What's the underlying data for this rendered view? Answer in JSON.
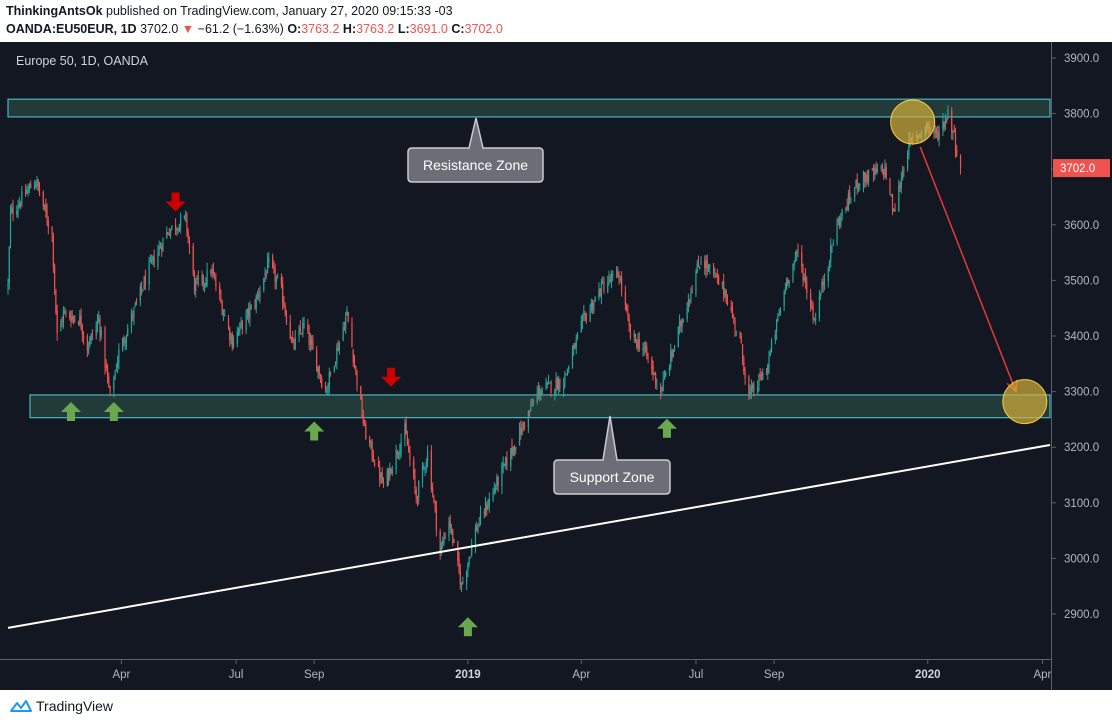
{
  "header": {
    "author": "ThinkingAntsOk",
    "published_text": "published on TradingView.com, January 27, 2020 09:15:33 -03",
    "symbol_line": "OANDA:EU50EUR, 1D",
    "last": "3702.0",
    "change": "−61.2 (−1.63%)",
    "o_label": "O:",
    "o_val": "3763.2",
    "h_label": "H:",
    "h_val": "3763.2",
    "l_label": "L:",
    "l_val": "3691.0",
    "c_label": "C:",
    "c_val": "3702.0"
  },
  "footer": {
    "brand": "TradingView"
  },
  "colors": {
    "background": "#131722",
    "up": "#26a69a",
    "down": "#ef5350",
    "zone_fill": "#2f5a4a",
    "zone_border": "#4dd0e1",
    "arrow_up": "#6aa84f",
    "arrow_down": "#cc0000",
    "circle": "#d4b03c"
  },
  "chart_data": {
    "type": "candlestick",
    "title": "Europe 50, 1D, OANDA",
    "price_axis": {
      "ticks": [
        2900,
        3000,
        3100,
        3200,
        3300,
        3400,
        3500,
        3600,
        3700,
        3800,
        3900
      ],
      "labels": [
        "2900.0",
        "3000.0",
        "3100.0",
        "3200.0",
        "3300.0",
        "3400.0",
        "3500.0",
        "3600.0",
        "3700.0",
        "3800.0",
        "3900.0"
      ],
      "range": [
        2790,
        3940
      ]
    },
    "time_axis": {
      "range": [
        "2018-01-01",
        "2020-04-07"
      ],
      "ticks": [
        {
          "date": "2018-04-01",
          "label": "Apr",
          "bold": false
        },
        {
          "date": "2018-07-01",
          "label": "Jul",
          "bold": false
        },
        {
          "date": "2018-09-01",
          "label": "Sep",
          "bold": false
        },
        {
          "date": "2019-01-01",
          "label": "2019",
          "bold": true
        },
        {
          "date": "2019-04-01",
          "label": "Apr",
          "bold": false
        },
        {
          "date": "2019-07-01",
          "label": "Jul",
          "bold": false
        },
        {
          "date": "2019-09-01",
          "label": "Sep",
          "bold": false
        },
        {
          "date": "2020-01-01",
          "label": "2020",
          "bold": true
        },
        {
          "date": "2020-04-01",
          "label": "Apr",
          "bold": false
        }
      ]
    },
    "last_price_label": "3702.0",
    "last_price": 3702.0,
    "price_path": [
      {
        "date": "2018-01-01",
        "price": 3490
      },
      {
        "date": "2018-01-03",
        "price": 3620
      },
      {
        "date": "2018-01-23",
        "price": 3680
      },
      {
        "date": "2018-02-05",
        "price": 3580
      },
      {
        "date": "2018-02-09",
        "price": 3400
      },
      {
        "date": "2018-02-14",
        "price": 3440
      },
      {
        "date": "2018-02-27",
        "price": 3430
      },
      {
        "date": "2018-03-05",
        "price": 3380
      },
      {
        "date": "2018-03-14",
        "price": 3430
      },
      {
        "date": "2018-03-23",
        "price": 3290
      },
      {
        "date": "2018-03-30",
        "price": 3370
      },
      {
        "date": "2018-04-23",
        "price": 3520
      },
      {
        "date": "2018-05-08",
        "price": 3590
      },
      {
        "date": "2018-05-22",
        "price": 3610
      },
      {
        "date": "2018-05-29",
        "price": 3490
      },
      {
        "date": "2018-06-06",
        "price": 3500
      },
      {
        "date": "2018-06-11",
        "price": 3520
      },
      {
        "date": "2018-06-28",
        "price": 3390
      },
      {
        "date": "2018-07-16",
        "price": 3460
      },
      {
        "date": "2018-07-27",
        "price": 3530
      },
      {
        "date": "2018-08-06",
        "price": 3480
      },
      {
        "date": "2018-08-15",
        "price": 3380
      },
      {
        "date": "2018-08-24",
        "price": 3420
      },
      {
        "date": "2018-09-10",
        "price": 3300
      },
      {
        "date": "2018-09-27",
        "price": 3440
      },
      {
        "date": "2018-10-11",
        "price": 3230
      },
      {
        "date": "2018-10-26",
        "price": 3130
      },
      {
        "date": "2018-11-12",
        "price": 3230
      },
      {
        "date": "2018-11-21",
        "price": 3110
      },
      {
        "date": "2018-11-30",
        "price": 3190
      },
      {
        "date": "2018-12-10",
        "price": 3010
      },
      {
        "date": "2018-12-17",
        "price": 3070
      },
      {
        "date": "2018-12-27",
        "price": 2950
      },
      {
        "date": "2019-01-07",
        "price": 3050
      },
      {
        "date": "2019-01-29",
        "price": 3160
      },
      {
        "date": "2019-02-26",
        "price": 3300
      },
      {
        "date": "2019-03-18",
        "price": 3320
      },
      {
        "date": "2019-04-03",
        "price": 3430
      },
      {
        "date": "2019-04-18",
        "price": 3490
      },
      {
        "date": "2019-05-01",
        "price": 3510
      },
      {
        "date": "2019-05-10",
        "price": 3400
      },
      {
        "date": "2019-05-20",
        "price": 3380
      },
      {
        "date": "2019-06-03",
        "price": 3300
      },
      {
        "date": "2019-06-24",
        "price": 3460
      },
      {
        "date": "2019-07-05",
        "price": 3540
      },
      {
        "date": "2019-07-24",
        "price": 3480
      },
      {
        "date": "2019-08-05",
        "price": 3390
      },
      {
        "date": "2019-08-12",
        "price": 3290
      },
      {
        "date": "2019-08-26",
        "price": 3340
      },
      {
        "date": "2019-09-11",
        "price": 3500
      },
      {
        "date": "2019-09-20",
        "price": 3550
      },
      {
        "date": "2019-10-03",
        "price": 3430
      },
      {
        "date": "2019-10-21",
        "price": 3600
      },
      {
        "date": "2019-11-07",
        "price": 3680
      },
      {
        "date": "2019-11-28",
        "price": 3700
      },
      {
        "date": "2019-12-05",
        "price": 3620
      },
      {
        "date": "2019-12-16",
        "price": 3740
      },
      {
        "date": "2019-12-31",
        "price": 3780
      },
      {
        "date": "2020-01-08",
        "price": 3760
      },
      {
        "date": "2020-01-17",
        "price": 3800
      },
      {
        "date": "2020-01-21",
        "price": 3770
      },
      {
        "date": "2020-01-27",
        "price": 3702
      }
    ],
    "zones": [
      {
        "name": "resistance",
        "label": "Resistance Zone",
        "from": 3794,
        "to": 3826
      },
      {
        "name": "support",
        "label": "Support Zone",
        "from": 3253,
        "to": 3294
      }
    ],
    "trendline": {
      "start": {
        "date": "2018-01-01",
        "price": 2875
      },
      "end": {
        "date": "2020-04-07",
        "price": 3204
      }
    },
    "projection": {
      "from": {
        "date": "2019-12-26",
        "price": 3740
      },
      "to": {
        "date": "2020-03-11",
        "price": 3300
      }
    },
    "circles": [
      {
        "date": "2019-12-20",
        "price": 3785
      },
      {
        "date": "2020-03-18",
        "price": 3282
      }
    ],
    "arrows_up": [
      {
        "date": "2018-02-20",
        "price": 3265
      },
      {
        "date": "2018-03-26",
        "price": 3265
      },
      {
        "date": "2018-09-01",
        "price": 3230
      },
      {
        "date": "2019-01-01",
        "price": 2878
      },
      {
        "date": "2019-06-08",
        "price": 3235
      }
    ],
    "arrows_down": [
      {
        "date": "2018-05-14",
        "price": 3640
      },
      {
        "date": "2018-11-01",
        "price": 3325
      }
    ]
  }
}
